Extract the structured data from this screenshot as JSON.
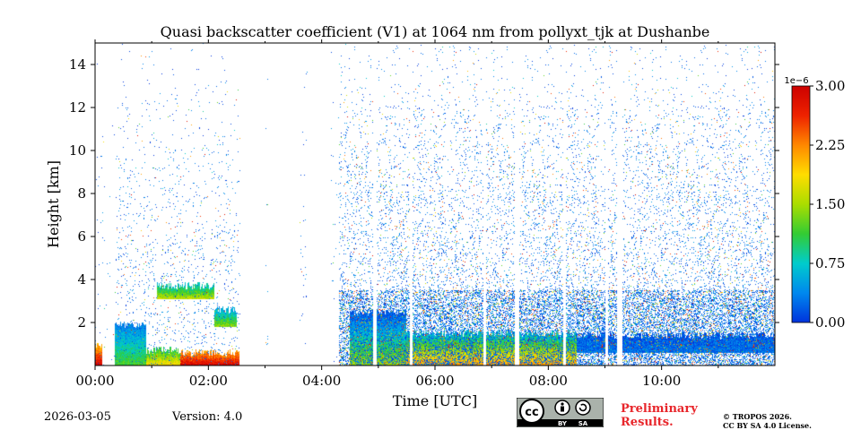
{
  "chart_data": {
    "type": "heatmap",
    "title": "Quasi backscatter coefficient (V1) at 1064 nm from pollyxt_tjk at Dushanbe",
    "xlabel": "Time [UTC]",
    "ylabel": "Height [km]",
    "x_range_hours": [
      0,
      12
    ],
    "y_range_km": [
      0,
      15
    ],
    "x_ticks": [
      {
        "value": 0,
        "label": "00:00"
      },
      {
        "value": 2,
        "label": "02:00"
      },
      {
        "value": 4,
        "label": "04:00"
      },
      {
        "value": 6,
        "label": "06:00"
      },
      {
        "value": 8,
        "label": "08:00"
      },
      {
        "value": 10,
        "label": "10:00"
      }
    ],
    "y_ticks": [
      {
        "value": 2,
        "label": "2"
      },
      {
        "value": 4,
        "label": "4"
      },
      {
        "value": 6,
        "label": "6"
      },
      {
        "value": 8,
        "label": "8"
      },
      {
        "value": 10,
        "label": "10"
      },
      {
        "value": 12,
        "label": "12"
      },
      {
        "value": 14,
        "label": "14"
      }
    ],
    "colorbar": {
      "min": 0.0,
      "max": 3.0,
      "exponent_label": "1e−6",
      "ticks": [
        "0.00",
        "0.75",
        "1.50",
        "2.25",
        "3.00"
      ],
      "colors": [
        "#0033dd",
        "#0088ee",
        "#00cccc",
        "#33cc33",
        "#aadd00",
        "#ffdd00",
        "#ff8800",
        "#ee2200",
        "#cc0000"
      ]
    },
    "gaps_hours": [
      [
        2.55,
        3.0
      ],
      [
        3.05,
        3.6
      ],
      [
        3.75,
        4.15
      ],
      [
        4.9,
        4.97
      ],
      [
        5.55,
        5.6
      ],
      [
        6.85,
        6.9
      ],
      [
        7.4,
        7.48
      ],
      [
        8.25,
        8.3
      ],
      [
        9.0,
        9.05
      ],
      [
        9.2,
        9.3
      ]
    ],
    "layers": [
      {
        "t0": 0.0,
        "t1": 0.12,
        "h0": 0.0,
        "h1": 0.9,
        "v0": 2.9,
        "v1": 2.0
      },
      {
        "t0": 0.35,
        "t1": 0.9,
        "h0": 0.0,
        "h1": 1.9,
        "v0": 1.2,
        "v1": 0.3
      },
      {
        "t0": 0.9,
        "t1": 1.5,
        "h0": 0.0,
        "h1": 0.7,
        "v0": 1.9,
        "v1": 1.0
      },
      {
        "t0": 1.5,
        "t1": 2.55,
        "h0": 0.0,
        "h1": 0.6,
        "v0": 2.9,
        "v1": 2.1
      },
      {
        "t0": 1.1,
        "t1": 2.1,
        "h0": 3.1,
        "h1": 3.7,
        "v0": 1.6,
        "v1": 0.7
      },
      {
        "t0": 2.1,
        "t1": 2.5,
        "h0": 1.8,
        "h1": 2.6,
        "v0": 1.4,
        "v1": 0.5
      },
      {
        "t0": 4.5,
        "t1": 5.5,
        "h0": 0.0,
        "h1": 2.5,
        "v0": 1.5,
        "v1": 0.1
      },
      {
        "t0": 5.5,
        "t1": 8.5,
        "h0": 0.0,
        "h1": 1.5,
        "v0": 2.2,
        "v1": 0.6
      },
      {
        "t0": 8.5,
        "t1": 12.0,
        "h0": 0.6,
        "h1": 1.4,
        "v0": 0.3,
        "v1": 0.1
      }
    ]
  },
  "footer": {
    "date": "2026-03-05",
    "version": "Version: 4.0",
    "license_badge": {
      "left": "cc",
      "by": "BY",
      "sa": "SA"
    },
    "preliminary_line1": "Preliminary",
    "preliminary_line2": "Results.",
    "copyright_line1": "© TROPOS 2026.",
    "copyright_line2": "CC BY SA 4.0 License."
  }
}
